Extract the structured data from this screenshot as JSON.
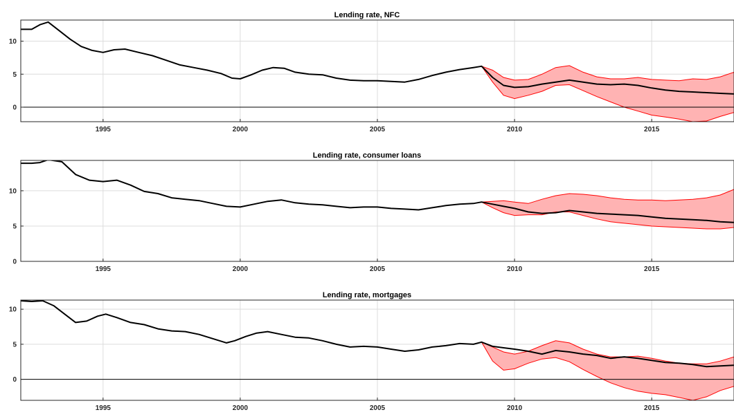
{
  "colors": {
    "band_fill": "#ffb3b3",
    "band_edge": "#ff0000",
    "line": "#000000",
    "grid": "#dcdcdc"
  },
  "chart_data": [
    {
      "type": "line",
      "title": "Lending rate, NFC",
      "xlim": [
        1992.0,
        2018.0
      ],
      "ylim": [
        -2.2,
        13.2
      ],
      "xticks": [
        1995,
        2000,
        2005,
        2010,
        2015
      ],
      "yticks": [
        0,
        5,
        10
      ],
      "grid": true,
      "series": [
        {
          "x": [
            1992.0,
            1992.4,
            1992.7,
            1993.0,
            1993.4,
            1993.8,
            1994.2,
            1994.6,
            1995.0,
            1995.4,
            1995.8,
            1996.3,
            1996.8,
            1997.3,
            1997.8,
            1998.3,
            1998.8,
            1999.3,
            1999.7,
            2000.0,
            2000.4,
            2000.8,
            2001.2,
            2001.6,
            2002.0,
            2002.5,
            2003.0,
            2003.5,
            2004.0,
            2004.5,
            2005.0,
            2005.5,
            2006.0,
            2006.5,
            2007.0,
            2007.5,
            2008.0,
            2008.5,
            2008.8,
            2009.2,
            2009.6,
            2010.0,
            2010.5,
            2011.0,
            2011.5,
            2012.0,
            2012.5,
            2013.0,
            2013.5,
            2014.0,
            2014.5,
            2015.0,
            2015.5,
            2016.0,
            2016.5,
            2017.0,
            2017.5,
            2018.0
          ],
          "values": [
            11.8,
            11.8,
            12.5,
            12.9,
            11.6,
            10.3,
            9.2,
            8.6,
            8.3,
            8.7,
            8.8,
            8.3,
            7.8,
            7.1,
            6.4,
            6.0,
            5.6,
            5.1,
            4.4,
            4.3,
            4.9,
            5.6,
            6.0,
            5.9,
            5.3,
            5.0,
            4.9,
            4.4,
            4.1,
            4.0,
            4.0,
            3.9,
            3.8,
            4.2,
            4.8,
            5.3,
            5.7,
            6.0,
            6.2,
            4.5,
            3.3,
            3.0,
            3.1,
            3.5,
            3.8,
            4.1,
            3.8,
            3.5,
            3.4,
            3.5,
            3.3,
            2.9,
            2.6,
            2.4,
            2.3,
            2.2,
            2.1,
            2.0
          ]
        }
      ],
      "band": {
        "x": [
          2008.8,
          2009.2,
          2009.6,
          2010.0,
          2010.5,
          2011.0,
          2011.5,
          2012.0,
          2012.5,
          2013.0,
          2013.5,
          2014.0,
          2014.5,
          2015.0,
          2015.5,
          2016.0,
          2016.5,
          2017.0,
          2017.5,
          2018.0
        ],
        "upper": [
          6.2,
          5.6,
          4.5,
          4.1,
          4.2,
          5.0,
          6.0,
          6.3,
          5.3,
          4.6,
          4.3,
          4.3,
          4.5,
          4.2,
          4.1,
          4.0,
          4.3,
          4.2,
          4.6,
          5.3
        ],
        "lower": [
          6.2,
          3.8,
          1.8,
          1.3,
          1.8,
          2.4,
          3.3,
          3.4,
          2.5,
          1.6,
          0.8,
          0.0,
          -0.6,
          -1.2,
          -1.5,
          -1.8,
          -2.2,
          -2.1,
          -1.4,
          -0.8
        ]
      }
    },
    {
      "type": "line",
      "title": "Lending rate, consumer loans",
      "xlim": [
        1992.0,
        2018.0
      ],
      "ylim": [
        0,
        14.3
      ],
      "xticks": [
        1995,
        2000,
        2005,
        2010,
        2015
      ],
      "yticks": [
        0,
        5,
        10
      ],
      "grid": true,
      "series": [
        {
          "x": [
            1992.0,
            1992.4,
            1992.7,
            1993.0,
            1993.5,
            1994.0,
            1994.5,
            1995.0,
            1995.5,
            1996.0,
            1996.5,
            1997.0,
            1997.5,
            1998.0,
            1998.5,
            1999.0,
            1999.5,
            2000.0,
            2000.5,
            2001.0,
            2001.5,
            2002.0,
            2002.5,
            2003.0,
            2003.5,
            2004.0,
            2004.5,
            2005.0,
            2005.5,
            2006.0,
            2006.5,
            2007.0,
            2007.5,
            2008.0,
            2008.5,
            2008.8,
            2009.2,
            2009.6,
            2010.0,
            2010.5,
            2011.0,
            2011.5,
            2012.0,
            2012.5,
            2013.0,
            2013.5,
            2014.0,
            2014.5,
            2015.0,
            2015.5,
            2016.0,
            2016.5,
            2017.0,
            2017.5,
            2018.0
          ],
          "values": [
            13.9,
            13.9,
            14.0,
            14.4,
            14.1,
            12.3,
            11.5,
            11.3,
            11.5,
            10.8,
            9.9,
            9.6,
            9.0,
            8.8,
            8.6,
            8.2,
            7.8,
            7.7,
            8.1,
            8.5,
            8.7,
            8.3,
            8.1,
            8.0,
            7.8,
            7.6,
            7.7,
            7.7,
            7.5,
            7.4,
            7.3,
            7.6,
            7.9,
            8.1,
            8.2,
            8.4,
            8.1,
            7.8,
            7.5,
            7.0,
            6.8,
            6.9,
            7.2,
            7.0,
            6.8,
            6.7,
            6.6,
            6.5,
            6.3,
            6.1,
            6.0,
            5.9,
            5.8,
            5.6,
            5.5
          ]
        }
      ],
      "band": {
        "x": [
          2008.8,
          2009.2,
          2009.6,
          2010.0,
          2010.5,
          2011.0,
          2011.5,
          2012.0,
          2012.5,
          2013.0,
          2013.5,
          2014.0,
          2014.5,
          2015.0,
          2015.5,
          2016.0,
          2016.5,
          2017.0,
          2017.5,
          2018.0
        ],
        "upper": [
          8.4,
          8.5,
          8.6,
          8.4,
          8.2,
          8.8,
          9.3,
          9.6,
          9.5,
          9.3,
          9.0,
          8.8,
          8.7,
          8.7,
          8.6,
          8.7,
          8.8,
          9.0,
          9.4,
          10.2
        ],
        "lower": [
          8.4,
          7.6,
          6.9,
          6.5,
          6.6,
          6.6,
          7.0,
          7.0,
          6.5,
          6.0,
          5.6,
          5.4,
          5.2,
          5.0,
          4.9,
          4.8,
          4.7,
          4.6,
          4.6,
          4.8
        ]
      }
    },
    {
      "type": "line",
      "title": "Lending rate, mortgages",
      "xlim": [
        1992.0,
        2018.0
      ],
      "ylim": [
        -3.0,
        11.3
      ],
      "xticks": [
        1995,
        2000,
        2005,
        2010,
        2015
      ],
      "yticks": [
        0,
        5,
        10
      ],
      "grid": true,
      "series": [
        {
          "x": [
            1992.0,
            1992.4,
            1992.8,
            1993.2,
            1993.6,
            1994.0,
            1994.4,
            1994.8,
            1995.1,
            1995.5,
            1996.0,
            1996.5,
            1997.0,
            1997.5,
            1998.0,
            1998.5,
            1999.0,
            1999.5,
            1999.8,
            2000.2,
            2000.6,
            2001.0,
            2001.5,
            2002.0,
            2002.5,
            2003.0,
            2003.5,
            2004.0,
            2004.5,
            2005.0,
            2005.5,
            2006.0,
            2006.5,
            2007.0,
            2007.5,
            2008.0,
            2008.5,
            2008.8,
            2009.2,
            2009.6,
            2010.0,
            2010.5,
            2011.0,
            2011.5,
            2012.0,
            2012.5,
            2013.0,
            2013.5,
            2014.0,
            2014.5,
            2015.0,
            2015.5,
            2016.0,
            2016.5,
            2017.0,
            2017.5,
            2018.0
          ],
          "values": [
            11.2,
            11.1,
            11.2,
            10.5,
            9.3,
            8.1,
            8.3,
            9.0,
            9.3,
            8.8,
            8.1,
            7.8,
            7.2,
            6.9,
            6.8,
            6.4,
            5.8,
            5.2,
            5.5,
            6.1,
            6.6,
            6.8,
            6.4,
            6.0,
            5.9,
            5.5,
            5.0,
            4.6,
            4.7,
            4.6,
            4.3,
            4.0,
            4.2,
            4.6,
            4.8,
            5.1,
            5.0,
            5.3,
            4.7,
            4.5,
            4.3,
            4.0,
            3.6,
            4.1,
            3.9,
            3.6,
            3.4,
            3.0,
            3.2,
            3.0,
            2.7,
            2.4,
            2.3,
            2.1,
            1.8,
            1.9,
            2.0
          ]
        }
      ],
      "band": {
        "x": [
          2008.8,
          2009.2,
          2009.6,
          2010.0,
          2010.5,
          2011.0,
          2011.5,
          2012.0,
          2012.5,
          2013.0,
          2013.5,
          2014.0,
          2014.5,
          2015.0,
          2015.5,
          2016.0,
          2016.5,
          2017.0,
          2017.5,
          2018.0
        ],
        "upper": [
          5.3,
          4.6,
          3.9,
          3.6,
          4.0,
          4.8,
          5.5,
          5.2,
          4.3,
          3.6,
          3.2,
          3.2,
          3.3,
          3.0,
          2.6,
          2.3,
          2.2,
          2.2,
          2.6,
          3.2
        ],
        "lower": [
          5.3,
          2.6,
          1.3,
          1.5,
          2.3,
          2.9,
          3.1,
          2.5,
          1.4,
          0.4,
          -0.5,
          -1.2,
          -1.7,
          -2.0,
          -2.2,
          -2.6,
          -3.0,
          -2.5,
          -1.6,
          -1.0
        ]
      }
    }
  ]
}
